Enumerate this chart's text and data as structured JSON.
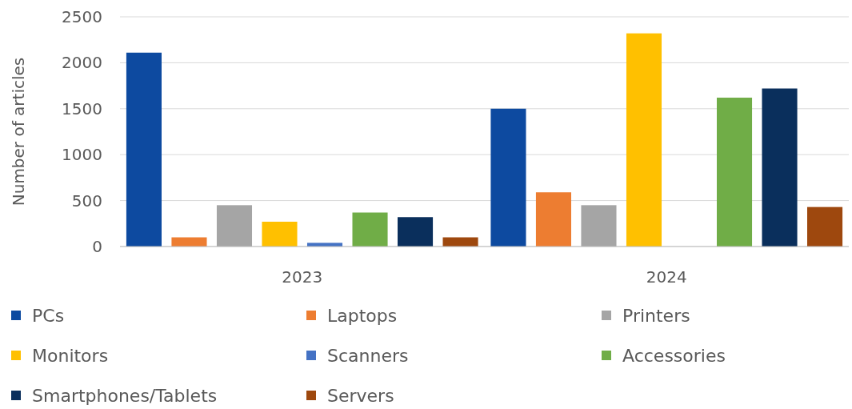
{
  "chart_data": {
    "type": "bar",
    "ylabel": "Number of articles",
    "categories": [
      "2023",
      "2024"
    ],
    "series": [
      {
        "name": "PCs",
        "color": "#0d4aa0",
        "values": [
          2110,
          1500
        ]
      },
      {
        "name": "Laptops",
        "color": "#ed7d31",
        "values": [
          100,
          590
        ]
      },
      {
        "name": "Printers",
        "color": "#a5a5a5",
        "values": [
          450,
          450
        ]
      },
      {
        "name": "Monitors",
        "color": "#ffc000",
        "values": [
          270,
          2320
        ]
      },
      {
        "name": "Scanners",
        "color": "#4472c4",
        "values": [
          40,
          0
        ]
      },
      {
        "name": "Accessories",
        "color": "#70ad47",
        "values": [
          370,
          1620
        ]
      },
      {
        "name": "Smartphones/Tablets",
        "color": "#0a2f5c",
        "values": [
          320,
          1720
        ]
      },
      {
        "name": "Servers",
        "color": "#9e480e",
        "values": [
          100,
          430
        ]
      }
    ],
    "ylim": [
      0,
      2500
    ],
    "yticks": [
      0,
      500,
      1000,
      1500,
      2000,
      2500
    ],
    "grid": "y",
    "legend": "bottom"
  }
}
